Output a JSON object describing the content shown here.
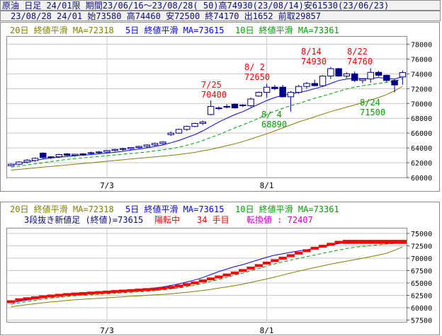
{
  "header": {
    "line1": "原油 日足 24/01限 期間23/06/16～23/08/28( 50)高74930(23/08/14)安61530(23/06/23)",
    "line2": "23/08/28 24/01 始73580 高74460 安72500 終74170 出1652 前取29857"
  },
  "top_legend": {
    "ma20": "20日 終値平滑 MA=72318",
    "ma5": "5日 終値平滑 MA=73615",
    "ma10": "10日 終値平滑 MA=73361"
  },
  "bottom_legend": {
    "ma20": "20日 終値平滑 MA=72318",
    "ma5": "5日 終値平滑 MA=73615",
    "ma10": "10日 終値平滑 MA=73361",
    "three_line_break": "3段抜き新値足 (終値)=73615",
    "trend": "陽転中",
    "count": "34 手目",
    "reversal": "転換値 : 72407"
  },
  "annotations": {
    "a1": {
      "date": "7/25",
      "value": "70400"
    },
    "a2": {
      "date": "8/ 2",
      "value": "72650"
    },
    "a3": {
      "date": "8/14",
      "value": "74930"
    },
    "a4": {
      "date": "8/22",
      "value": "74760"
    },
    "a5": {
      "date": "8/ 4",
      "value": "68890"
    },
    "a6": {
      "date": "8/24",
      "value": "71500"
    }
  },
  "colors": {
    "ma5": "#0000ff",
    "ma10": "#00a000",
    "ma20": "#808000",
    "bear_candle": "#00008b",
    "bull_candle": "#ffffff",
    "brick": "#ff0000",
    "high_annotation": "#ff0000",
    "low_annotation": "#00a000",
    "grid": "#c8c8c8"
  },
  "chart_data": [
    {
      "type": "candlestick",
      "name": "price",
      "ylim": [
        60000,
        79000
      ],
      "yticks": [
        "60000",
        "62000",
        "64000",
        "66000",
        "68000",
        "70000",
        "72000",
        "74000",
        "76000",
        "78000"
      ],
      "xticks": [
        {
          "index": 12,
          "label": "7/3"
        },
        {
          "index": 32,
          "label": "8/1"
        }
      ],
      "grid": true,
      "candles": [
        {
          "o": 61600,
          "h": 61900,
          "l": 61530,
          "c": 61800
        },
        {
          "o": 61800,
          "h": 62200,
          "l": 61700,
          "c": 62100
        },
        {
          "o": 62100,
          "h": 62500,
          "l": 61900,
          "c": 62350
        },
        {
          "o": 62300,
          "h": 62700,
          "l": 62100,
          "c": 62600
        },
        {
          "o": 63300,
          "h": 63400,
          "l": 62500,
          "c": 62700
        },
        {
          "o": 62700,
          "h": 62900,
          "l": 62500,
          "c": 62800
        },
        {
          "o": 62800,
          "h": 63200,
          "l": 62650,
          "c": 63100
        },
        {
          "o": 63200,
          "h": 63300,
          "l": 62900,
          "c": 63000
        },
        {
          "o": 63000,
          "h": 63200,
          "l": 62800,
          "c": 63150
        },
        {
          "o": 63100,
          "h": 63300,
          "l": 62950,
          "c": 63200
        },
        {
          "o": 63300,
          "h": 63500,
          "l": 63100,
          "c": 63350
        },
        {
          "o": 63400,
          "h": 63600,
          "l": 63150,
          "c": 63450
        },
        {
          "o": 63450,
          "h": 63700,
          "l": 63300,
          "c": 63650
        },
        {
          "o": 63650,
          "h": 63900,
          "l": 63500,
          "c": 63800
        },
        {
          "o": 63800,
          "h": 64000,
          "l": 63600,
          "c": 63900
        },
        {
          "o": 63900,
          "h": 64100,
          "l": 63700,
          "c": 64050
        },
        {
          "o": 64050,
          "h": 64300,
          "l": 63900,
          "c": 64200
        },
        {
          "o": 64200,
          "h": 64500,
          "l": 64000,
          "c": 64400
        },
        {
          "o": 64400,
          "h": 64700,
          "l": 64200,
          "c": 64600
        },
        {
          "o": 64600,
          "h": 64900,
          "l": 64400,
          "c": 64800
        },
        {
          "o": 65800,
          "h": 66200,
          "l": 65600,
          "c": 66000
        },
        {
          "o": 66000,
          "h": 66600,
          "l": 65900,
          "c": 66500
        },
        {
          "o": 66500,
          "h": 67000,
          "l": 66300,
          "c": 66900
        },
        {
          "o": 66900,
          "h": 67400,
          "l": 66800,
          "c": 67300
        },
        {
          "o": 67300,
          "h": 67700,
          "l": 67100,
          "c": 67500
        },
        {
          "o": 68500,
          "h": 70400,
          "l": 68400,
          "c": 69600
        },
        {
          "o": 69300,
          "h": 69600,
          "l": 69100,
          "c": 69400
        },
        {
          "o": 69600,
          "h": 69900,
          "l": 69300,
          "c": 69500
        },
        {
          "o": 69900,
          "h": 70000,
          "l": 69300,
          "c": 69400
        },
        {
          "o": 69700,
          "h": 69900,
          "l": 69500,
          "c": 69800
        },
        {
          "o": 69700,
          "h": 70800,
          "l": 69500,
          "c": 70600
        },
        {
          "o": 71000,
          "h": 71600,
          "l": 70900,
          "c": 71500
        },
        {
          "o": 71500,
          "h": 72650,
          "l": 70800,
          "c": 72200
        },
        {
          "o": 72200,
          "h": 72500,
          "l": 71800,
          "c": 72000
        },
        {
          "o": 72200,
          "h": 72500,
          "l": 70800,
          "c": 70900
        },
        {
          "o": 70900,
          "h": 71700,
          "l": 68890,
          "c": 71500
        },
        {
          "o": 71500,
          "h": 72500,
          "l": 71300,
          "c": 72300
        },
        {
          "o": 72300,
          "h": 72900,
          "l": 72000,
          "c": 72700
        },
        {
          "o": 72700,
          "h": 73200,
          "l": 72300,
          "c": 72400
        },
        {
          "o": 72400,
          "h": 73800,
          "l": 72300,
          "c": 73700
        },
        {
          "o": 73700,
          "h": 74930,
          "l": 73300,
          "c": 74700
        },
        {
          "o": 74700,
          "h": 74800,
          "l": 73600,
          "c": 73700
        },
        {
          "o": 73700,
          "h": 74200,
          "l": 73400,
          "c": 74000
        },
        {
          "o": 74000,
          "h": 74300,
          "l": 72900,
          "c": 73100
        },
        {
          "o": 73100,
          "h": 73400,
          "l": 72700,
          "c": 73300
        },
        {
          "o": 73300,
          "h": 74760,
          "l": 72800,
          "c": 74200
        },
        {
          "o": 74200,
          "h": 74400,
          "l": 73600,
          "c": 73800
        },
        {
          "o": 73800,
          "h": 73900,
          "l": 72900,
          "c": 73100
        },
        {
          "o": 73100,
          "h": 73300,
          "l": 71500,
          "c": 72500
        },
        {
          "o": 73580,
          "h": 74460,
          "l": 72500,
          "c": 74170
        }
      ],
      "series": [
        {
          "name": "5日 終値平滑",
          "values": [
            61700,
            61900,
            62100,
            62300,
            62500,
            62650,
            62750,
            62850,
            62950,
            63000,
            63100,
            63200,
            63300,
            63400,
            63550,
            63700,
            63850,
            64000,
            64200,
            64400,
            64700,
            65000,
            65400,
            65800,
            66300,
            66900,
            67500,
            68000,
            68500,
            68900,
            69400,
            69900,
            70400,
            70800,
            71100,
            71300,
            71500,
            71700,
            72000,
            72300,
            72700,
            73100,
            73300,
            73400,
            73350,
            73400,
            73500,
            73400,
            73300,
            73615
          ]
        },
        {
          "name": "10日 終値平滑",
          "values": [
            61400,
            61550,
            61700,
            61850,
            62000,
            62150,
            62300,
            62450,
            62550,
            62650,
            62750,
            62850,
            62950,
            63050,
            63150,
            63250,
            63350,
            63450,
            63600,
            63750,
            63900,
            64100,
            64350,
            64650,
            65000,
            65400,
            65800,
            66250,
            66700,
            67100,
            67550,
            68000,
            68500,
            68950,
            69350,
            69700,
            70000,
            70350,
            70700,
            71000,
            71300,
            71650,
            71950,
            72200,
            72400,
            72550,
            72700,
            72850,
            73000,
            73361
          ]
        },
        {
          "name": "20日 終値平滑",
          "values": [
            61000,
            61100,
            61200,
            61300,
            61400,
            61500,
            61600,
            61700,
            61800,
            61900,
            62000,
            62100,
            62200,
            62300,
            62400,
            62500,
            62600,
            62700,
            62800,
            62900,
            63000,
            63100,
            63250,
            63400,
            63600,
            63800,
            64050,
            64300,
            64550,
            64850,
            65200,
            65550,
            65900,
            66300,
            66700,
            67100,
            67500,
            67850,
            68200,
            68550,
            68900,
            69200,
            69500,
            69800,
            70100,
            70450,
            70800,
            71200,
            71700,
            72318
          ]
        }
      ]
    },
    {
      "type": "three_line_break",
      "name": "3段抜き新値足",
      "ylim": [
        57000,
        76000
      ],
      "yticks": [
        "57500",
        "60000",
        "62500",
        "65000",
        "67500",
        "70000",
        "72500",
        "75000"
      ],
      "xticks": [
        {
          "index": 12,
          "label": "7/3"
        },
        {
          "index": 32,
          "label": "8/1"
        }
      ],
      "grid": true,
      "bricks": [
        {
          "lo": 61000,
          "hi": 61500
        },
        {
          "lo": 61500,
          "hi": 61900
        },
        {
          "lo": 61900,
          "hi": 62100
        },
        {
          "lo": 62100,
          "hi": 62300
        },
        {
          "lo": 62300,
          "hi": 62500
        },
        {
          "lo": 62500,
          "hi": 62650
        },
        {
          "lo": 62650,
          "hi": 62800
        },
        {
          "lo": 62800,
          "hi": 62950
        },
        {
          "lo": 62950,
          "hi": 63050
        },
        {
          "lo": 63050,
          "hi": 63150
        },
        {
          "lo": 63150,
          "hi": 63250
        },
        {
          "lo": 63250,
          "hi": 63350
        },
        {
          "lo": 63350,
          "hi": 63450
        },
        {
          "lo": 63450,
          "hi": 63550
        },
        {
          "lo": 63550,
          "hi": 63650
        },
        {
          "lo": 63650,
          "hi": 63750
        },
        {
          "lo": 63750,
          "hi": 63850
        },
        {
          "lo": 63850,
          "hi": 63950
        },
        {
          "lo": 63950,
          "hi": 64050
        },
        {
          "lo": 64050,
          "hi": 64200
        },
        {
          "lo": 64200,
          "hi": 64400
        },
        {
          "lo": 64400,
          "hi": 64650
        },
        {
          "lo": 64650,
          "hi": 64950
        },
        {
          "lo": 64950,
          "hi": 65300
        },
        {
          "lo": 65300,
          "hi": 65700
        },
        {
          "lo": 65700,
          "hi": 66100
        },
        {
          "lo": 66100,
          "hi": 66500
        },
        {
          "lo": 66500,
          "hi": 66900
        },
        {
          "lo": 66900,
          "hi": 67300
        },
        {
          "lo": 67300,
          "hi": 67800
        },
        {
          "lo": 67800,
          "hi": 68300
        },
        {
          "lo": 68300,
          "hi": 68800
        },
        {
          "lo": 68800,
          "hi": 69300
        },
        {
          "lo": 69300,
          "hi": 69800
        },
        {
          "lo": 69800,
          "hi": 70300
        },
        {
          "lo": 70300,
          "hi": 70800
        },
        {
          "lo": 70800,
          "hi": 71300
        },
        {
          "lo": 71300,
          "hi": 71800
        },
        {
          "lo": 71800,
          "hi": 72300
        },
        {
          "lo": 72300,
          "hi": 72700
        },
        {
          "lo": 72700,
          "hi": 73100
        },
        {
          "lo": 73100,
          "hi": 73500
        },
        {
          "lo": 72900,
          "hi": 73700
        },
        {
          "lo": 72900,
          "hi": 73700
        },
        {
          "lo": 72900,
          "hi": 73700
        },
        {
          "lo": 72900,
          "hi": 73700
        },
        {
          "lo": 72900,
          "hi": 73700
        },
        {
          "lo": 72900,
          "hi": 73700
        },
        {
          "lo": 72900,
          "hi": 73700
        },
        {
          "lo": 72900,
          "hi": 73700
        }
      ],
      "series": [
        {
          "name": "5日 終値平滑",
          "values": [
            61000,
            61300,
            61550,
            61800,
            62050,
            62250,
            62400,
            62550,
            62700,
            62800,
            62900,
            63000,
            63100,
            63200,
            63350,
            63500,
            63650,
            63800,
            64000,
            64200,
            64500,
            64800,
            65200,
            65600,
            66100,
            66700,
            67300,
            67800,
            68300,
            68700,
            69200,
            69700,
            70200,
            70600,
            70900,
            71200,
            71450,
            71700,
            72000,
            72300,
            72650,
            72950,
            73150,
            73250,
            73250,
            73300,
            73400,
            73400,
            73450,
            73615
          ]
        },
        {
          "name": "10日 終値平滑",
          "values": [
            60700,
            61000,
            61250,
            61500,
            61750,
            61950,
            62100,
            62250,
            62400,
            62500,
            62600,
            62700,
            62800,
            62900,
            63000,
            63100,
            63200,
            63300,
            63450,
            63600,
            63800,
            64000,
            64250,
            64550,
            64900,
            65300,
            65700,
            66150,
            66600,
            67000,
            67450,
            67900,
            68400,
            68850,
            69250,
            69600,
            69950,
            70300,
            70650,
            71000,
            71300,
            71650,
            71950,
            72200,
            72400,
            72550,
            72700,
            72850,
            73000,
            73361
          ]
        },
        {
          "name": "20日 終値平滑",
          "values": [
            60200,
            60400,
            60600,
            60800,
            61000,
            61150,
            61300,
            61450,
            61600,
            61700,
            61800,
            61900,
            62000,
            62100,
            62200,
            62300,
            62400,
            62500,
            62600,
            62700,
            62800,
            62950,
            63100,
            63300,
            63500,
            63700,
            63950,
            64200,
            64450,
            64750,
            65100,
            65450,
            65800,
            66200,
            66600,
            67000,
            67400,
            67750,
            68100,
            68450,
            68800,
            69100,
            69400,
            69700,
            70000,
            70300,
            70650,
            71000,
            71600,
            72318
          ]
        }
      ]
    }
  ]
}
